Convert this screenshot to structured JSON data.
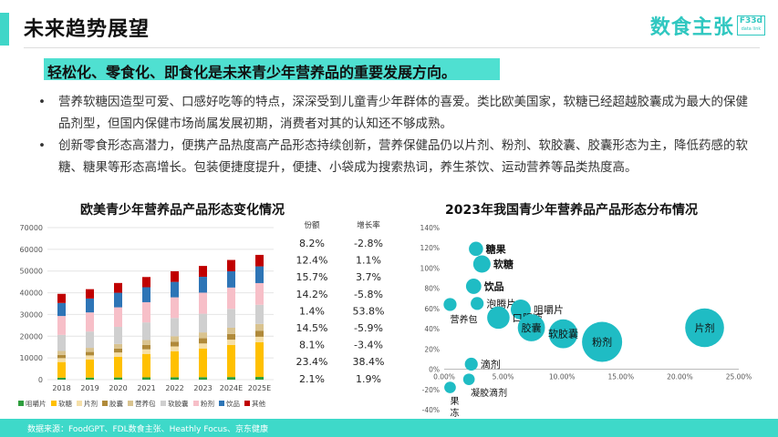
{
  "page": {
    "title": "未来趋势展望",
    "logo_text": "数食主张",
    "logo_box_line1": "F33d",
    "logo_box_line2": "data link",
    "highlight": "轻松化、零食化、即食化是未来青少年营养品的重要发展方向。",
    "bullets": [
      "营养软糖因造型可爱、口感好吃等的特点，深深受到儿童青少年群体的喜爱。类比欧美国家，软糖已经超越胶囊成为最大的保健品剂型，但国内保健市场尚属发展初期，消费者对其的认知还不够成熟。",
      "创新零食形态高潜力，便携产品热度高产品形态持续创新，营养保健品仍以片剂、粉剂、软胶囊、胶囊形态为主，降低药感的软糖、糖果等形态高增长。包装便捷度提升，便捷、小袋成为搜索热词，养生茶饮、运动营养等品类热度高。"
    ],
    "footer": "数据来源：FoodGPT、FDL数食主张、Heathly Focus、京东健康",
    "colors": {
      "accent": "#3fd6c8",
      "highlight": "#4fe0d1",
      "bubble": "#1fbcc4"
    }
  },
  "chart_data": [
    {
      "type": "bar",
      "stacked": true,
      "title": "欧美青少年营养品产品形态变化情况",
      "categories": [
        "2018",
        "2019",
        "2020",
        "2021",
        "2022",
        "2023",
        "2024E",
        "2025E"
      ],
      "ylim": [
        0,
        70000
      ],
      "yticks": [
        0,
        10000,
        20000,
        30000,
        40000,
        50000,
        60000,
        70000
      ],
      "grid": true,
      "legend_position": "bottom",
      "series": [
        {
          "name": "咀嚼片",
          "color": "#2e9e3e",
          "values": [
            900,
            950,
            1000,
            1050,
            1100,
            1150,
            1200,
            1250
          ]
        },
        {
          "name": "软糖",
          "color": "#ffc000",
          "values": [
            7200,
            8300,
            9500,
            10800,
            12000,
            13200,
            14800,
            16000
          ]
        },
        {
          "name": "片剂",
          "color": "#f5dfa8",
          "values": [
            1800,
            1900,
            2000,
            2100,
            2200,
            2300,
            2400,
            2500
          ]
        },
        {
          "name": "胶囊",
          "color": "#b08a3a",
          "values": [
            1500,
            1600,
            1800,
            2000,
            2200,
            2400,
            2600,
            2800
          ]
        },
        {
          "name": "营养包",
          "color": "#d9c38f",
          "values": [
            1800,
            1900,
            2100,
            2300,
            2500,
            2700,
            2900,
            3100
          ]
        },
        {
          "name": "软胶囊",
          "color": "#cfcfcf",
          "values": [
            7400,
            7500,
            7900,
            8100,
            8400,
            8600,
            8700,
            8800
          ]
        },
        {
          "name": "粉剂",
          "color": "#f7bfc8",
          "values": [
            8700,
            8800,
            9000,
            9300,
            9500,
            9700,
            9800,
            10000
          ]
        },
        {
          "name": "饮品",
          "color": "#2e75b6",
          "values": [
            6000,
            6400,
            6700,
            6900,
            7100,
            7300,
            7500,
            7700
          ]
        },
        {
          "name": "其他",
          "color": "#c00000",
          "values": [
            4200,
            4300,
            4500,
            4700,
            4900,
            5000,
            5200,
            5300
          ]
        }
      ],
      "table": {
        "headers": [
          "份额",
          "增长率"
        ],
        "rows": [
          [
            "8.2%",
            "-2.8%"
          ],
          [
            "12.4%",
            "1.1%"
          ],
          [
            "15.7%",
            "3.7%"
          ],
          [
            "14.2%",
            "-5.8%"
          ],
          [
            "1.4%",
            "53.8%"
          ],
          [
            "14.5%",
            "-5.9%"
          ],
          [
            "8.1%",
            "-3.4%"
          ],
          [
            "23.4%",
            "38.4%"
          ],
          [
            "2.1%",
            "1.9%"
          ]
        ]
      }
    },
    {
      "type": "scatter",
      "bubble": true,
      "title": "2023年我国青少年营养品产品形态分布情况",
      "xlim": [
        0,
        0.25
      ],
      "ylim": [
        -0.4,
        1.4
      ],
      "xticks": [
        "0.00%",
        "5.00%",
        "10.00%",
        "15.00%",
        "20.00%",
        "25.00%"
      ],
      "yticks": [
        "140%",
        "120%",
        "100%",
        "80%",
        "60%",
        "40%",
        "20%",
        "0%",
        "-20%",
        "-40%"
      ],
      "points": [
        {
          "name": "糖果",
          "x": 0.027,
          "y": 1.19,
          "size": 0.06,
          "bold": true,
          "label_side": "right"
        },
        {
          "name": "软糖",
          "x": 0.032,
          "y": 1.04,
          "size": 0.09,
          "bold": true,
          "label_side": "right"
        },
        {
          "name": "饮品",
          "x": 0.025,
          "y": 0.82,
          "size": 0.07,
          "bold": true,
          "label_side": "right"
        },
        {
          "name": "营养包",
          "x": 0.005,
          "y": 0.64,
          "size": 0.05,
          "bold": false,
          "label_side": "below"
        },
        {
          "name": "泡腾片",
          "x": 0.028,
          "y": 0.65,
          "size": 0.05,
          "bold": false,
          "label_side": "right"
        },
        {
          "name": "咀嚼片",
          "x": 0.065,
          "y": 0.59,
          "size": 0.12,
          "bold": false,
          "label_side": "right"
        },
        {
          "name": "口服液",
          "x": 0.046,
          "y": 0.51,
          "size": 0.15,
          "bold": false,
          "label_side": "right"
        },
        {
          "name": "胶囊",
          "x": 0.074,
          "y": 0.41,
          "size": 0.22,
          "bold": false,
          "label_side": "center"
        },
        {
          "name": "软胶囊",
          "x": 0.101,
          "y": 0.35,
          "size": 0.25,
          "bold": false,
          "label_side": "center"
        },
        {
          "name": "粉剂",
          "x": 0.134,
          "y": 0.27,
          "size": 0.48,
          "bold": false,
          "label_side": "center"
        },
        {
          "name": "片剂",
          "x": 0.221,
          "y": 0.41,
          "size": 0.45,
          "bold": false,
          "label_side": "center"
        },
        {
          "name": "滴剂",
          "x": 0.023,
          "y": 0.05,
          "size": 0.05,
          "bold": false,
          "label_side": "right"
        },
        {
          "name": "凝胶滴剂",
          "x": 0.021,
          "y": -0.1,
          "size": 0.04,
          "bold": false,
          "label_side": "belowright"
        },
        {
          "name": "果冻",
          "x": 0.005,
          "y": -0.18,
          "size": 0.04,
          "bold": false,
          "label_side": "belowstack"
        }
      ]
    }
  ]
}
